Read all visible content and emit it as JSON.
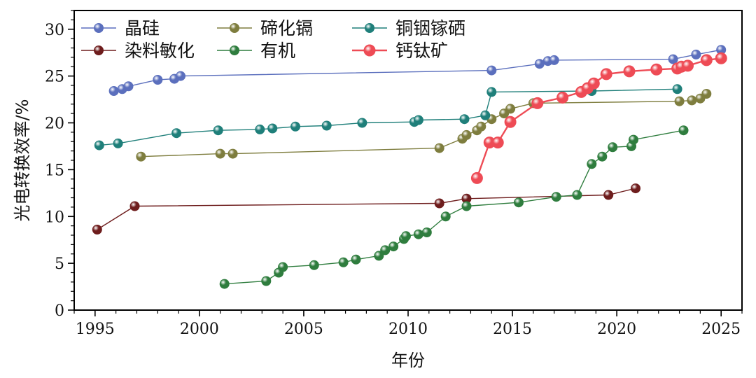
{
  "chart_data": {
    "type": "line",
    "title": "",
    "xlabel": "年份",
    "ylabel": "光电转换效率/%",
    "xlim": [
      1994,
      2026
    ],
    "ylim": [
      0,
      32
    ],
    "xticks": [
      1995,
      2000,
      2005,
      2010,
      2015,
      2020,
      2025
    ],
    "yticks": [
      0,
      5,
      10,
      15,
      20,
      25,
      30
    ],
    "grid": false,
    "legend_position": "top-left",
    "series": [
      {
        "name": "晶硅",
        "color": "#5b6fbd",
        "x": [
          1995.9,
          1996.3,
          1996.6,
          1998.0,
          1998.8,
          1999.1,
          2014.0,
          2016.3,
          2016.7,
          2017.0,
          2022.7,
          2023.8,
          2025.0
        ],
        "y": [
          23.4,
          23.6,
          23.9,
          24.6,
          24.7,
          25.0,
          25.6,
          26.3,
          26.6,
          26.7,
          26.8,
          27.3,
          27.8
        ]
      },
      {
        "name": "碲化镉",
        "color": "#7e7d3e",
        "x": [
          1997.2,
          2001.0,
          2001.6,
          2011.5,
          2012.6,
          2012.8,
          2013.3,
          2013.5,
          2014.0,
          2014.6,
          2014.9,
          2016.0,
          2023.0,
          2023.6,
          2024.0,
          2024.3
        ],
        "y": [
          16.4,
          16.7,
          16.7,
          17.3,
          18.3,
          18.7,
          19.2,
          19.6,
          20.4,
          21.0,
          21.5,
          22.1,
          22.3,
          22.4,
          22.6,
          23.1
        ]
      },
      {
        "name": "铜铟镓硒",
        "color": "#1f7f7a",
        "x": [
          1995.2,
          1996.1,
          1998.9,
          2000.9,
          2002.9,
          2003.5,
          2004.6,
          2006.1,
          2007.8,
          2010.3,
          2010.5,
          2012.7,
          2013.7,
          2014.0,
          2018.8,
          2022.9
        ],
        "y": [
          17.6,
          17.8,
          18.9,
          19.2,
          19.3,
          19.4,
          19.6,
          19.7,
          20.0,
          20.1,
          20.3,
          20.4,
          20.8,
          23.3,
          23.4,
          23.6
        ]
      },
      {
        "name": "染料敏化",
        "color": "#6e1d1d",
        "x": [
          1995.1,
          1996.9,
          2011.5,
          2012.8,
          2019.6,
          2020.9
        ],
        "y": [
          8.6,
          11.1,
          11.4,
          11.9,
          12.3,
          13.0
        ]
      },
      {
        "name": "有机",
        "color": "#2f7d3e",
        "x": [
          2001.2,
          2003.2,
          2003.8,
          2004.0,
          2005.5,
          2006.9,
          2007.5,
          2008.6,
          2008.9,
          2009.3,
          2009.8,
          2009.9,
          2010.5,
          2010.9,
          2011.8,
          2012.8,
          2015.3,
          2017.1,
          2018.1,
          2018.8,
          2019.3,
          2019.8,
          2020.7,
          2020.8,
          2023.2
        ],
        "y": [
          2.8,
          3.1,
          4.0,
          4.6,
          4.8,
          5.1,
          5.4,
          5.8,
          6.4,
          6.8,
          7.6,
          7.9,
          8.1,
          8.3,
          10.0,
          11.1,
          11.5,
          12.1,
          12.3,
          15.6,
          16.4,
          17.4,
          17.5,
          18.2,
          19.2
        ]
      },
      {
        "name": "钙钛矿",
        "color": "#ee4b55",
        "x": [
          2013.3,
          2013.9,
          2014.3,
          2014.9,
          2016.2,
          2017.4,
          2018.3,
          2018.6,
          2018.9,
          2019.5,
          2020.6,
          2021.9,
          2022.9,
          2023.1,
          2023.4,
          2024.3,
          2025.0
        ],
        "y": [
          14.1,
          17.9,
          17.9,
          20.1,
          22.1,
          22.7,
          23.3,
          23.7,
          24.2,
          25.2,
          25.5,
          25.7,
          25.8,
          26.0,
          26.1,
          26.7,
          26.9
        ]
      }
    ]
  }
}
